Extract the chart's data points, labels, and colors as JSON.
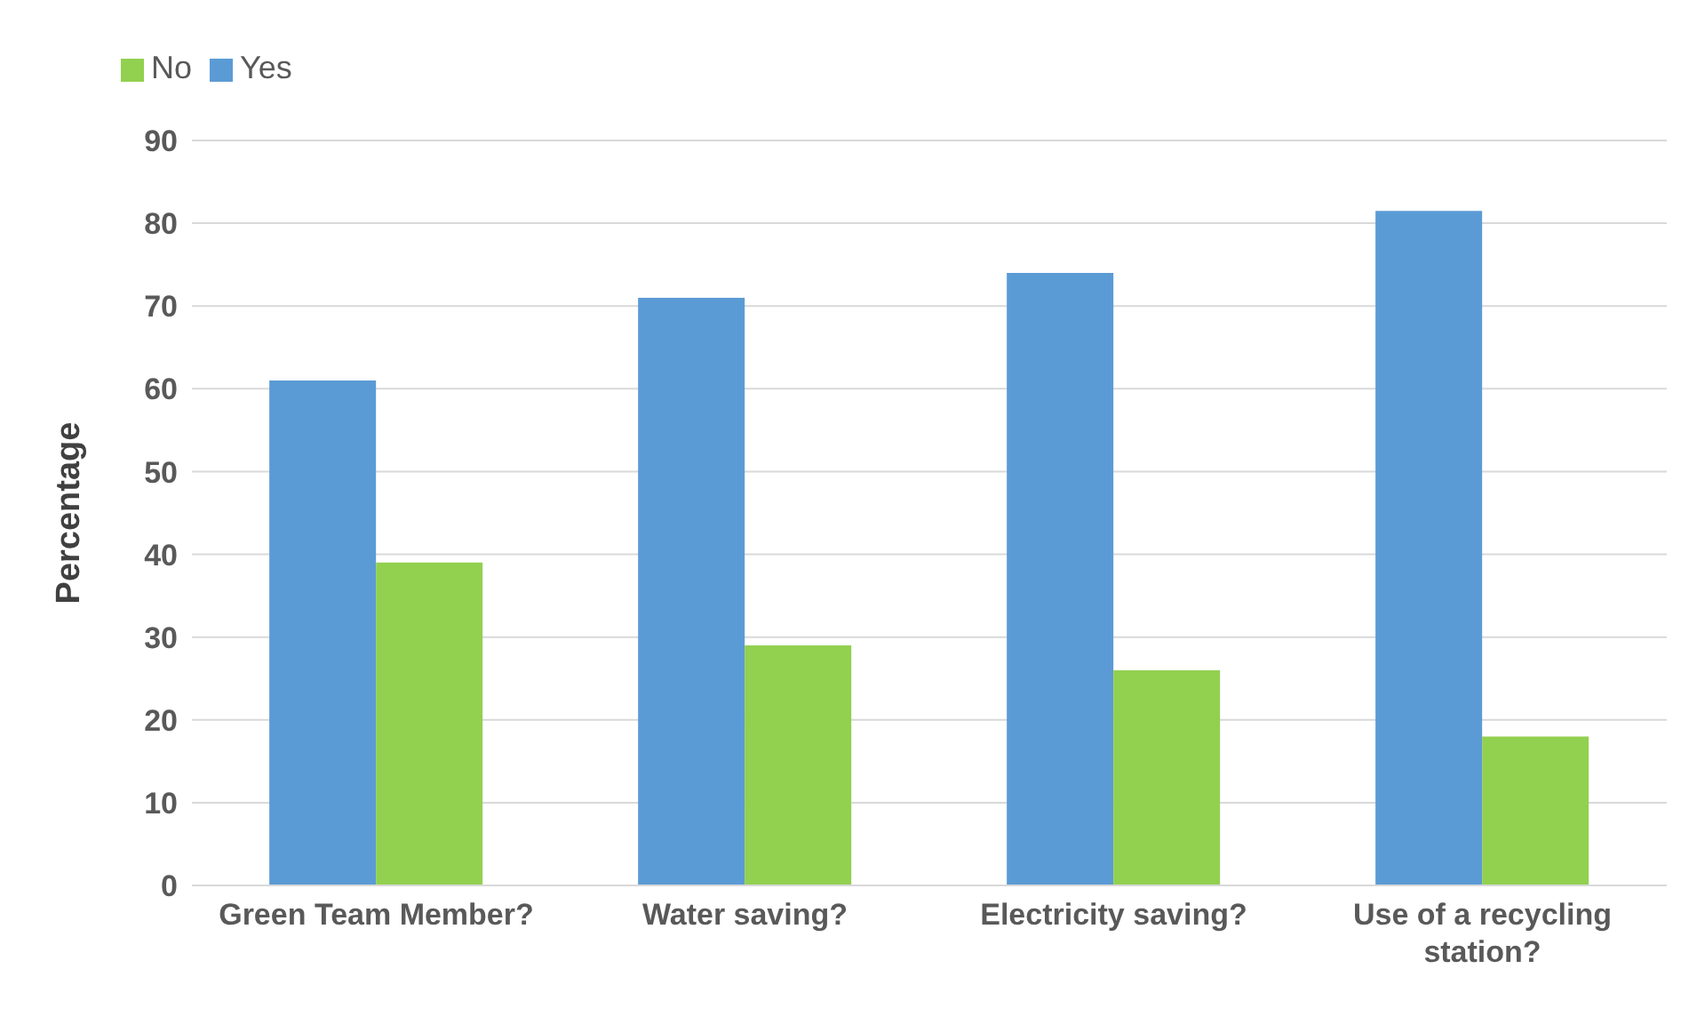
{
  "chart_data": {
    "type": "bar",
    "ylabel": "Percentage",
    "categories": [
      "Green Team Member?",
      "Water saving?",
      "Electricity saving?",
      "Use of a recycling station?"
    ],
    "series": [
      {
        "name": "Yes",
        "color": "#5b9bd5",
        "values": [
          61,
          71,
          74,
          81.5
        ]
      },
      {
        "name": "No",
        "color": "#92d050",
        "values": [
          39,
          29,
          26,
          18
        ]
      }
    ],
    "ylim": [
      0,
      90
    ],
    "yticks": [
      0,
      10,
      20,
      30,
      40,
      50,
      60,
      70,
      80,
      90
    ],
    "grid": "y",
    "legend": "top left"
  }
}
